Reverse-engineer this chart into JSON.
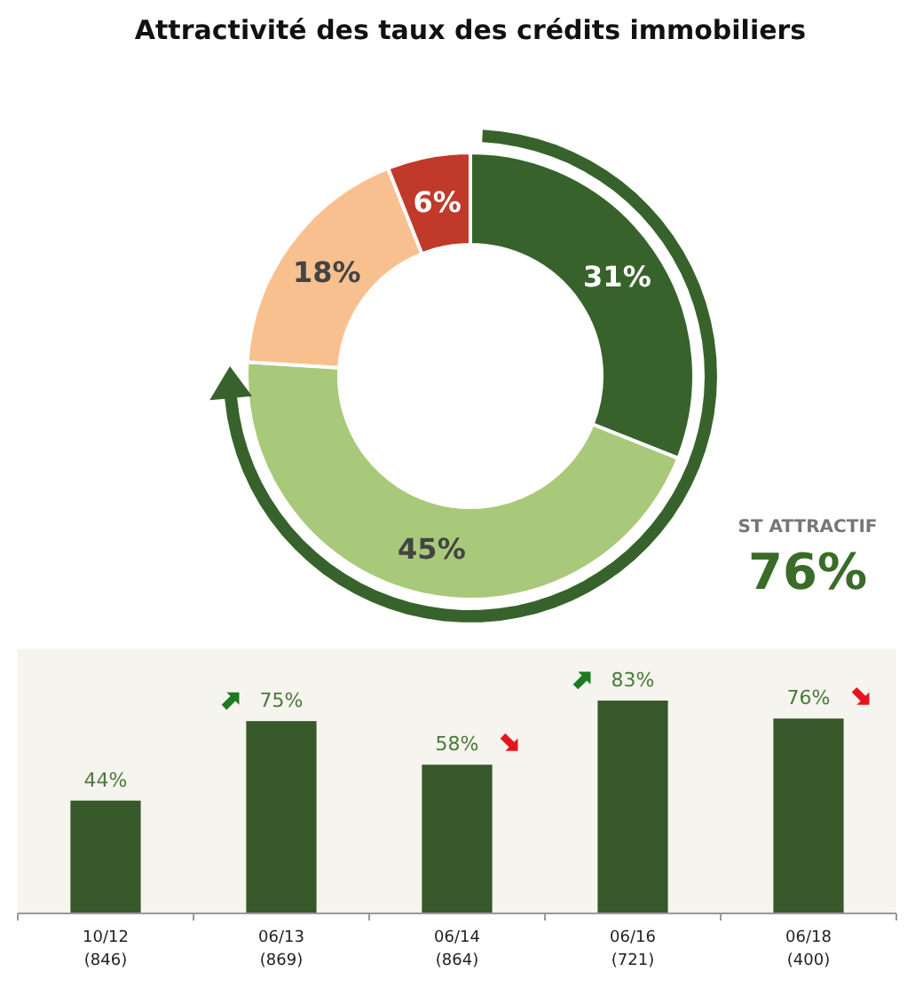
{
  "chart_data": [
    {
      "type": "donut",
      "title": "Attractivité des taux des crédits immobiliers",
      "categories": [
        null,
        null,
        null,
        null
      ],
      "values": [
        31,
        45,
        18,
        6
      ],
      "value_labels": [
        "31%",
        "45%",
        "18%",
        "6%"
      ],
      "colors": [
        "#38622b",
        "#a9c97a",
        "#f9c08f",
        "#c0392b"
      ],
      "annotations": [
        "ST ATTRACTIF",
        "76%"
      ]
    },
    {
      "type": "bar",
      "categories": [
        "10/12\n(846)",
        "06/13\n(869)",
        "06/14\n(864)",
        "06/16\n(721)",
        "06/18\n(400)"
      ],
      "values": [
        44,
        75,
        58,
        83,
        76
      ],
      "value_labels": [
        "44%",
        "75%",
        "58%",
        "83%",
        "76%"
      ],
      "color": "#38592a"
    }
  ]
}
